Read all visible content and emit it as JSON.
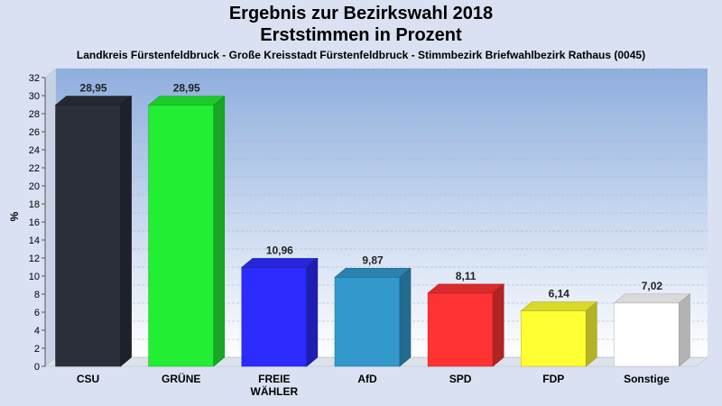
{
  "title": "Ergebnis zur Bezirkswahl 2018",
  "title2": "Erststimmen in Prozent",
  "subtitle": "Landkreis Fürstenfeldbruck - Große Kreisstadt Fürstenfeldbruck - Stimmbezirk Briefwahlbezirk Rathaus (0045)",
  "chart_data": {
    "type": "bar",
    "title": "Ergebnis zur Bezirkswahl 2018",
    "subtitle": "Erststimmen in Prozent",
    "ylabel": "%",
    "xlabel": "",
    "ylim": [
      0,
      32
    ],
    "yticks": [
      0,
      2,
      4,
      6,
      8,
      10,
      12,
      14,
      16,
      18,
      20,
      22,
      24,
      26,
      28,
      30,
      32
    ],
    "grid": true,
    "categories": [
      "CSU",
      "GRÜNE",
      "FREIE WÄHLER",
      "AfD",
      "SPD",
      "FDP",
      "Sonstige"
    ],
    "category_lines": [
      [
        "CSU"
      ],
      [
        "GRÜNE"
      ],
      [
        "FREIE",
        "WÄHLER"
      ],
      [
        "AfD"
      ],
      [
        "SPD"
      ],
      [
        "FDP"
      ],
      [
        "Sonstige"
      ]
    ],
    "values": [
      28.95,
      28.95,
      10.96,
      9.87,
      8.11,
      6.14,
      7.02
    ],
    "value_labels": [
      "28,95",
      "28,95",
      "10,96",
      "9,87",
      "8,11",
      "6,14",
      "7,02"
    ],
    "colors": [
      "#2b2f3a",
      "#22ee33",
      "#2b2bff",
      "#3399cc",
      "#ff3333",
      "#ffff33",
      "#ffffff"
    ]
  }
}
